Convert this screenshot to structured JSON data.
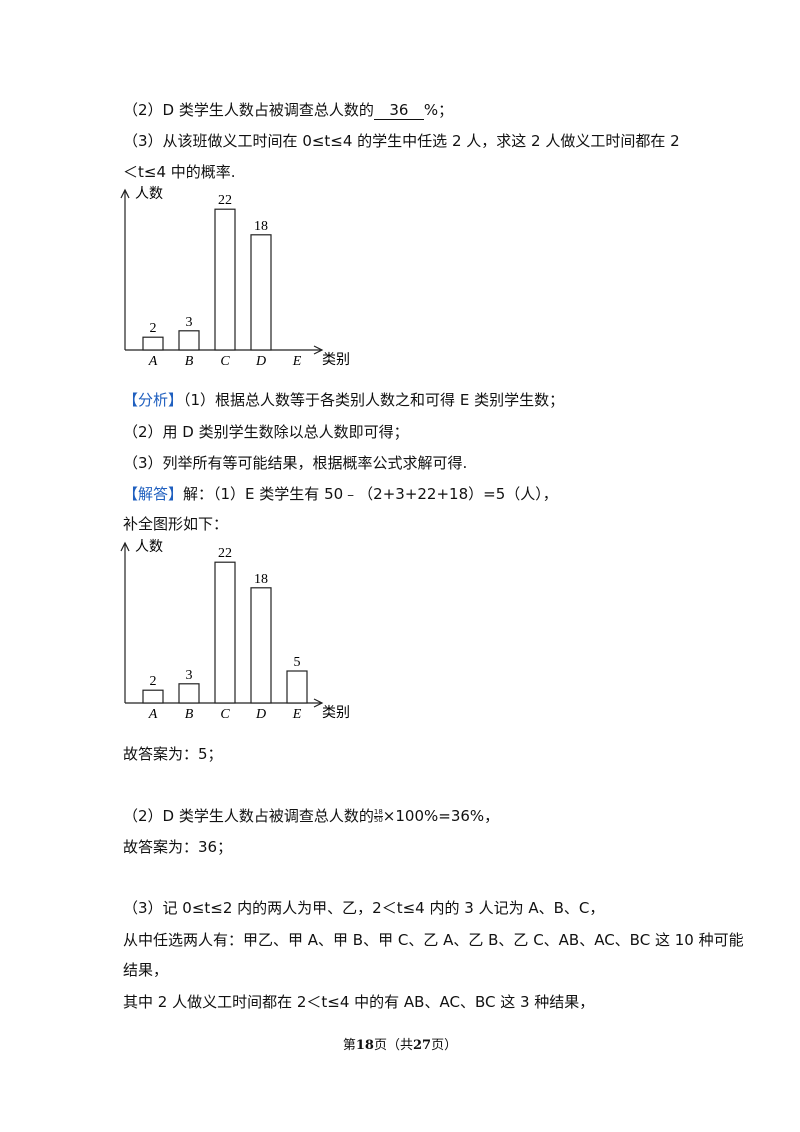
{
  "question": {
    "part2": {
      "text": "（2）D 类学生人数占被调查总人数的",
      "answer": "36",
      "suffix": "%；"
    },
    "part3": [
      "（3）从该班做义工时间在 0≤t≤4 的学生中任选 2 人，求这 2 人做义工时间都在 2",
      "＜t≤4 中的概率."
    ]
  },
  "charts": [
    {
      "type": "bar",
      "y_label": "人数",
      "x_label": "类别",
      "categories": [
        "A",
        "B",
        "C",
        "D",
        "E"
      ],
      "values": [
        2,
        3,
        22,
        18,
        null
      ],
      "ylim": [
        0,
        25
      ]
    },
    {
      "type": "bar",
      "y_label": "人数",
      "x_label": "类别",
      "categories": [
        "A",
        "B",
        "C",
        "D",
        "E"
      ],
      "values": [
        2,
        3,
        22,
        18,
        5
      ],
      "ylim": [
        0,
        25
      ]
    }
  ],
  "analysis": {
    "tag": "【分析】",
    "lines": [
      "（1）根据总人数等于各类别人数之和可得 E 类别学生数；",
      "（2）用 D 类别学生数除以总人数即可得；",
      "（3）列举所有等可能结果，根据概率公式求解可得."
    ]
  },
  "solution": {
    "tag": "【解答】",
    "line1": "解：（1）E 类学生有 50﹣（2+3+22+18）=5（人），",
    "line2": "补全图形如下：",
    "answer1": "故答案为：5；",
    "part2": {
      "text": "（2）D 类学生人数占被调查总人数的",
      "numerator": "18",
      "denominator": "50",
      "suffix": "×100%=36%，"
    },
    "answer2": "故答案为：36；",
    "part3": [
      "（3）记 0≤t≤2 内的两人为甲、乙，2＜t≤4 内的 3 人记为 A、B、C，",
      "从中任选两人有：甲乙、甲 A、甲 B、甲 C、乙 A、乙 B、乙 C、AB、AC、BC 这 10 种可能",
      "结果，",
      "其中 2 人做义工时间都在 2＜t≤4 中的有 AB、AC、BC 这 3 种结果，"
    ]
  },
  "footer": {
    "prefix": "第",
    "page": "18",
    "middle": "页（共",
    "total": "27",
    "suffix": "页）"
  }
}
